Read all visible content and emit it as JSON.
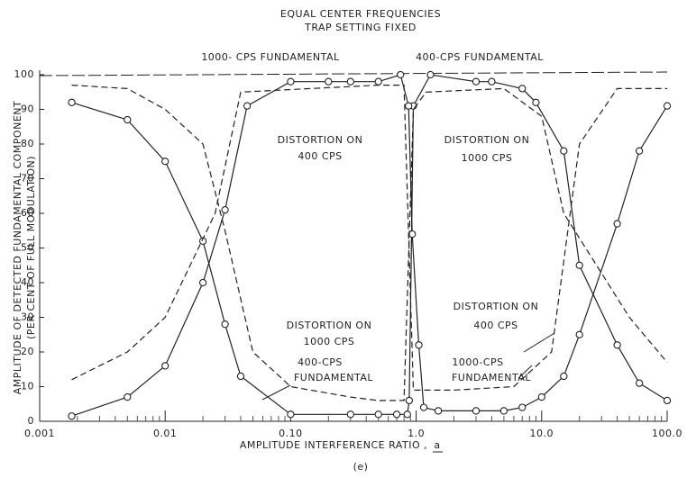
{
  "chart_data": {
    "type": "line",
    "title": "EQUAL CENTER FREQUENCIES",
    "subtitle": "TRAP SETTING FIXED",
    "x_label": "AMPLITUDE INTERFERENCE RATIO ,",
    "x_label_symbol": "a",
    "y_label": [
      "AMPLITUDE OF DETECTED FUNDAMENTAL COMPONENT",
      "(PER CENT OF FULL MODULATION)"
    ],
    "caption": "(e)",
    "log_x": true,
    "xlim": [
      0.001,
      100
    ],
    "xticks": [
      {
        "value": 0.001,
        "label": "0.001"
      },
      {
        "value": 0.01,
        "label": "0.01"
      },
      {
        "value": 0.1,
        "label": "0.10"
      },
      {
        "value": 1,
        "label": "1.0"
      },
      {
        "value": 10,
        "label": "10.0"
      },
      {
        "value": 100,
        "label": "100.0"
      }
    ],
    "ylim": [
      0,
      100
    ],
    "yticks": [
      0,
      10,
      20,
      30,
      40,
      50,
      60,
      70,
      80,
      90,
      100
    ],
    "annotations": [
      "1000- CPS FUNDAMENTAL",
      "400-CPS FUNDAMENTAL",
      "DISTORTION ON",
      "400 CPS",
      "DISTORTION ON",
      "1000 CPS",
      "DISTORTION ON",
      "1000 CPS",
      "400-CPS",
      "FUNDAMENTAL",
      "DISTORTION ON",
      "400 CPS",
      "1000-CPS",
      "FUNDAMENTAL"
    ],
    "series": [
      {
        "color": "#222",
        "style": "solid",
        "markers": true,
        "x": [
          0.0018,
          0.005,
          0.01,
          0.02,
          0.03,
          0.04,
          0.1,
          0.3,
          0.5,
          0.7,
          0.85,
          0.88,
          0.95,
          1.3,
          3,
          4,
          7,
          9,
          15,
          20,
          40,
          60,
          100
        ],
        "values": [
          92,
          87,
          75,
          52,
          28,
          13,
          2,
          2,
          2,
          2,
          2,
          6,
          91,
          100,
          98,
          98,
          96,
          92,
          78,
          45,
          22,
          11,
          6
        ]
      },
      {
        "color": "#222",
        "style": "solid",
        "markers": true,
        "x": [
          0.0018,
          0.005,
          0.01,
          0.02,
          0.03,
          0.045,
          0.1,
          0.2,
          0.3,
          0.5,
          0.75,
          0.87,
          0.93,
          1.05,
          1.15,
          1.5,
          3,
          5,
          7,
          10,
          15,
          20,
          40,
          60,
          100
        ],
        "values": [
          1.5,
          7,
          16,
          40,
          61,
          91,
          98,
          98,
          98,
          98,
          100,
          91,
          54,
          22,
          4,
          3,
          3,
          3,
          4,
          7,
          13,
          25,
          57,
          78,
          91
        ]
      },
      {
        "color": "#222",
        "style": "dashed",
        "markers": false,
        "x": [
          0.0018,
          0.005,
          0.01,
          0.02,
          0.03,
          0.05,
          0.1,
          0.3,
          0.5,
          0.8,
          0.95,
          1.2,
          5,
          10,
          15,
          50,
          100
        ],
        "values": [
          97,
          96,
          90,
          80,
          55,
          20,
          10,
          7,
          6,
          6,
          90,
          95,
          96,
          88,
          60,
          30,
          17
        ]
      },
      {
        "color": "#222",
        "style": "dashed",
        "markers": false,
        "x": [
          0.0018,
          0.005,
          0.01,
          0.025,
          0.04,
          0.5,
          0.8,
          0.95,
          2,
          6,
          12,
          20,
          40,
          100
        ],
        "values": [
          12,
          20,
          30,
          60,
          95,
          97,
          97,
          9,
          9,
          10,
          20,
          80,
          96,
          96
        ]
      }
    ]
  }
}
